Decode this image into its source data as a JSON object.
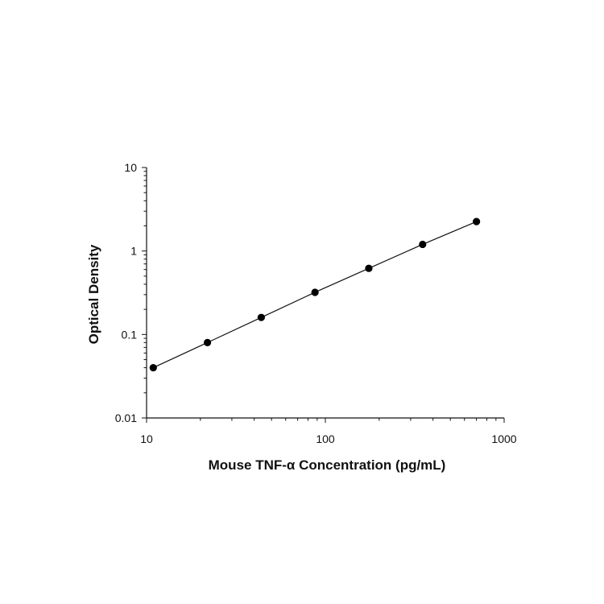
{
  "chart_data": {
    "type": "scatter",
    "title": "",
    "xlabel": "Mouse TNF-α Concentration (pg/mL)",
    "ylabel": "Optical Density",
    "x_scale": "log",
    "y_scale": "log",
    "xlim": [
      10,
      1000
    ],
    "ylim": [
      0.01,
      10
    ],
    "x_ticks": [
      10,
      100,
      1000
    ],
    "x_tick_labels": [
      "10",
      "100",
      "1000"
    ],
    "y_ticks": [
      0.01,
      0.1,
      1,
      10
    ],
    "y_tick_labels": [
      "0.01",
      "0.1",
      "1",
      "10"
    ],
    "grid": false,
    "legend": "none",
    "series": [
      {
        "x": [
          10.9,
          21.9,
          43.8,
          87.5,
          175,
          350,
          700
        ],
        "y": [
          0.04,
          0.08,
          0.16,
          0.32,
          0.62,
          1.2,
          2.25
        ],
        "color": "#000000",
        "line": "connected"
      }
    ]
  }
}
